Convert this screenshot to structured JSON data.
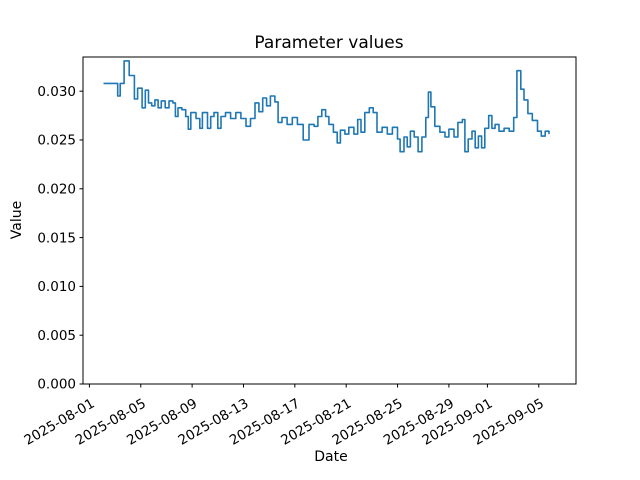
{
  "figure": {
    "background": "#ffffff",
    "frame_color": "#000000",
    "text_color": "#000000"
  },
  "chart_data": {
    "type": "line",
    "title": "Parameter values",
    "xlabel": "Date",
    "ylabel": "Value",
    "line_color": "#1f77b4",
    "line_width": 1.6,
    "step_mode": "post",
    "grid": false,
    "legend": "none",
    "x_units": "days_since_2025-08-01",
    "xlim": [
      -0.5,
      37.9
    ],
    "ylim": [
      0,
      0.0335
    ],
    "x_ticks": [
      {
        "pos": 0,
        "label": "2025-08-01"
      },
      {
        "pos": 4,
        "label": "2025-08-05"
      },
      {
        "pos": 8,
        "label": "2025-08-09"
      },
      {
        "pos": 12,
        "label": "2025-08-13"
      },
      {
        "pos": 16,
        "label": "2025-08-17"
      },
      {
        "pos": 20,
        "label": "2025-08-21"
      },
      {
        "pos": 24,
        "label": "2025-08-25"
      },
      {
        "pos": 28,
        "label": "2025-08-29"
      },
      {
        "pos": 31,
        "label": "2025-09-01"
      },
      {
        "pos": 35,
        "label": "2025-09-05"
      }
    ],
    "y_ticks": [
      {
        "pos": 0.0,
        "label": "0.000"
      },
      {
        "pos": 0.005,
        "label": "0.005"
      },
      {
        "pos": 0.01,
        "label": "0.010"
      },
      {
        "pos": 0.015,
        "label": "0.015"
      },
      {
        "pos": 0.02,
        "label": "0.020"
      },
      {
        "pos": 0.025,
        "label": "0.025"
      },
      {
        "pos": 0.03,
        "label": "0.030"
      }
    ],
    "series": [
      {
        "name": "parameter-values",
        "points": [
          [
            1.1,
            0.0308
          ],
          [
            2.2,
            0.0295
          ],
          [
            2.4,
            0.0308
          ],
          [
            2.7,
            0.0331
          ],
          [
            3.1,
            0.0316
          ],
          [
            3.5,
            0.0292
          ],
          [
            3.75,
            0.0303
          ],
          [
            4.1,
            0.0283
          ],
          [
            4.35,
            0.0301
          ],
          [
            4.6,
            0.0288
          ],
          [
            4.85,
            0.0285
          ],
          [
            5.1,
            0.0291
          ],
          [
            5.35,
            0.0283
          ],
          [
            5.6,
            0.029
          ],
          [
            5.9,
            0.0283
          ],
          [
            6.2,
            0.029
          ],
          [
            6.5,
            0.0288
          ],
          [
            6.7,
            0.0274
          ],
          [
            6.9,
            0.0283
          ],
          [
            7.2,
            0.0281
          ],
          [
            7.5,
            0.0274
          ],
          [
            7.7,
            0.0261
          ],
          [
            7.9,
            0.0278
          ],
          [
            8.3,
            0.0272
          ],
          [
            8.6,
            0.0262
          ],
          [
            8.8,
            0.0278
          ],
          [
            9.2,
            0.0262
          ],
          [
            9.45,
            0.0274
          ],
          [
            9.7,
            0.0278
          ],
          [
            10.0,
            0.0262
          ],
          [
            10.25,
            0.0274
          ],
          [
            10.6,
            0.0278
          ],
          [
            11.0,
            0.0272
          ],
          [
            11.4,
            0.0278
          ],
          [
            11.8,
            0.0272
          ],
          [
            12.2,
            0.0264
          ],
          [
            12.55,
            0.0272
          ],
          [
            12.9,
            0.0288
          ],
          [
            13.2,
            0.0279
          ],
          [
            13.5,
            0.0293
          ],
          [
            13.8,
            0.0285
          ],
          [
            14.1,
            0.0295
          ],
          [
            14.45,
            0.0289
          ],
          [
            14.7,
            0.0268
          ],
          [
            15.0,
            0.0273
          ],
          [
            15.4,
            0.0266
          ],
          [
            15.8,
            0.0273
          ],
          [
            16.2,
            0.0266
          ],
          [
            16.65,
            0.025
          ],
          [
            17.1,
            0.0266
          ],
          [
            17.5,
            0.0264
          ],
          [
            17.8,
            0.0274
          ],
          [
            18.1,
            0.0281
          ],
          [
            18.4,
            0.0274
          ],
          [
            18.65,
            0.0266
          ],
          [
            19.0,
            0.0258
          ],
          [
            19.3,
            0.0247
          ],
          [
            19.55,
            0.026
          ],
          [
            19.9,
            0.0256
          ],
          [
            20.2,
            0.0263
          ],
          [
            20.6,
            0.0256
          ],
          [
            20.9,
            0.0271
          ],
          [
            21.15,
            0.0258
          ],
          [
            21.45,
            0.0278
          ],
          [
            21.8,
            0.0283
          ],
          [
            22.1,
            0.0278
          ],
          [
            22.4,
            0.0258
          ],
          [
            22.8,
            0.0263
          ],
          [
            23.2,
            0.0256
          ],
          [
            23.6,
            0.0263
          ],
          [
            24.0,
            0.0251
          ],
          [
            24.2,
            0.0238
          ],
          [
            24.5,
            0.0253
          ],
          [
            24.75,
            0.0243
          ],
          [
            25.0,
            0.0259
          ],
          [
            25.3,
            0.0253
          ],
          [
            25.6,
            0.0238
          ],
          [
            25.9,
            0.0253
          ],
          [
            26.2,
            0.0273
          ],
          [
            26.4,
            0.0299
          ],
          [
            26.6,
            0.0284
          ],
          [
            26.9,
            0.0264
          ],
          [
            27.3,
            0.0258
          ],
          [
            27.7,
            0.0253
          ],
          [
            28.0,
            0.0261
          ],
          [
            28.4,
            0.0253
          ],
          [
            28.7,
            0.0268
          ],
          [
            29.05,
            0.0271
          ],
          [
            29.25,
            0.0238
          ],
          [
            29.5,
            0.0251
          ],
          [
            29.8,
            0.0259
          ],
          [
            30.05,
            0.0242
          ],
          [
            30.3,
            0.0254
          ],
          [
            30.55,
            0.0242
          ],
          [
            30.8,
            0.0262
          ],
          [
            31.1,
            0.0275
          ],
          [
            31.35,
            0.0262
          ],
          [
            31.6,
            0.0266
          ],
          [
            31.9,
            0.0259
          ],
          [
            32.3,
            0.0262
          ],
          [
            32.7,
            0.0259
          ],
          [
            33.05,
            0.0273
          ],
          [
            33.3,
            0.0321
          ],
          [
            33.6,
            0.0302
          ],
          [
            33.85,
            0.0291
          ],
          [
            34.15,
            0.0277
          ],
          [
            34.5,
            0.027
          ],
          [
            34.9,
            0.0259
          ],
          [
            35.2,
            0.0254
          ],
          [
            35.5,
            0.0259
          ],
          [
            35.8,
            0.0256
          ]
        ]
      }
    ]
  }
}
